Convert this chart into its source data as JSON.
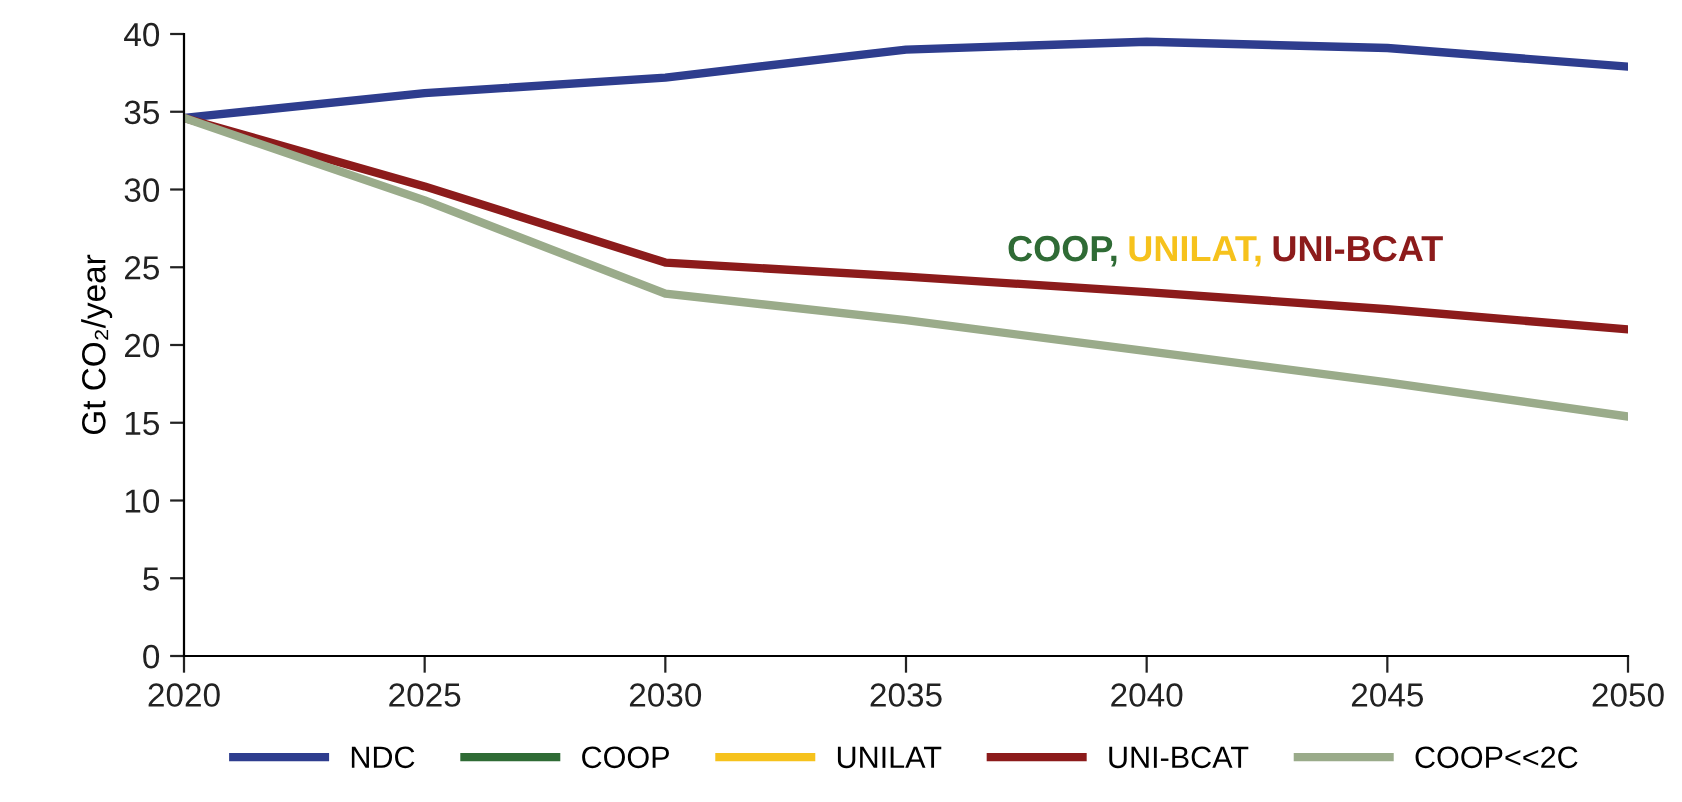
{
  "chart_data": {
    "type": "line",
    "ylabel": "Gt CO₂/year",
    "x": [
      2020,
      2025,
      2030,
      2035,
      2040,
      2045,
      2050
    ],
    "series": [
      {
        "name": "NDC",
        "color": "#2e3d8e",
        "values": [
          34.6,
          36.2,
          37.2,
          39.0,
          39.5,
          39.1,
          37.9
        ]
      },
      {
        "name": "COOP",
        "color": "#2f6b35",
        "values": [
          null,
          null,
          null,
          null,
          null,
          null,
          null
        ]
      },
      {
        "name": "UNILAT",
        "color": "#f6c21c",
        "values": [
          null,
          null,
          null,
          null,
          null,
          null,
          null
        ]
      },
      {
        "name": "UNI-BCAT",
        "color": "#8c1b1b",
        "values": [
          34.6,
          30.2,
          25.3,
          24.4,
          23.4,
          22.3,
          21.0
        ]
      },
      {
        "name": "COOP<<2C",
        "color": "#9aab8a",
        "values": [
          34.6,
          29.3,
          23.3,
          21.6,
          19.6,
          17.6,
          15.4
        ]
      }
    ],
    "annotations": [
      "COOP,",
      "UNILAT,",
      "UNI-BCAT"
    ],
    "xlim": [
      2020,
      2050
    ],
    "xticks": [
      2020,
      2025,
      2030,
      2035,
      2040,
      2045,
      2050
    ],
    "ylim": [
      0,
      40
    ],
    "yticks": [
      0,
      5,
      10,
      15,
      20,
      25,
      30,
      35,
      40
    ],
    "grid": false,
    "legend": "bottom",
    "marker": "none",
    "line_style": "solid"
  }
}
